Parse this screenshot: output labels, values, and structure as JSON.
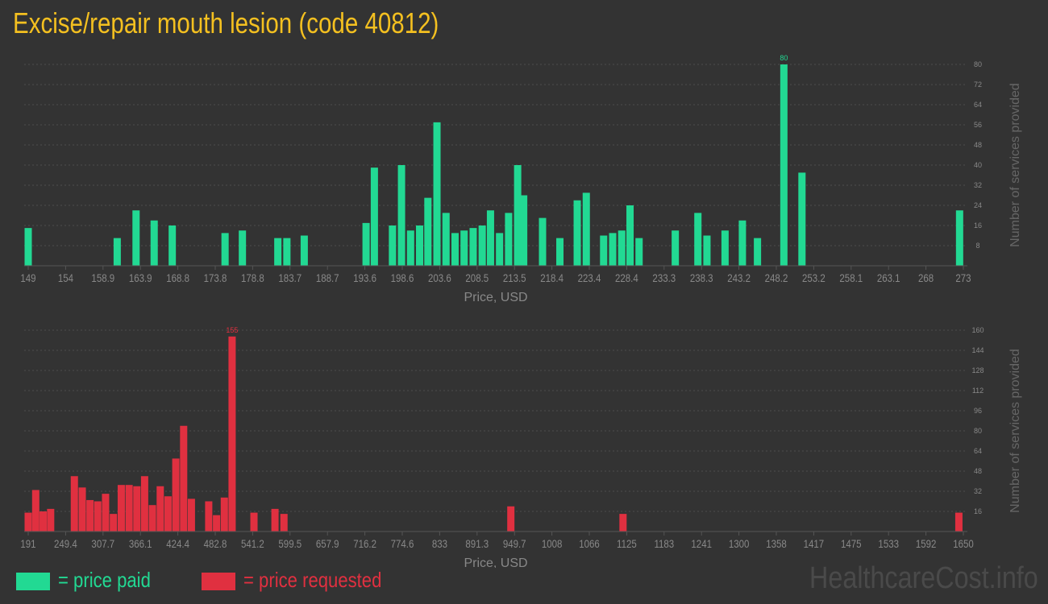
{
  "title": "Excise/repair mouth lesion (code 40812)",
  "watermark": "HealthcareCost.info",
  "legend": {
    "paid_label": "= price paid",
    "requested_label": "= price requested"
  },
  "colors": {
    "background": "#333333",
    "title": "#f4c020",
    "paid": "#22d993",
    "requested": "#e03040",
    "axis_text": "#888888",
    "grid": "#4d4d4d"
  },
  "chart_data": [
    {
      "type": "bar",
      "name": "price paid",
      "xlabel": "Price, USD",
      "ylabel": "Number of services provided",
      "xlim": [
        149,
        273
      ],
      "ylim": [
        0,
        80
      ],
      "yticks": [
        8,
        16,
        24,
        32,
        40,
        48,
        56,
        64,
        72,
        80
      ],
      "xtick_labels": [
        "149",
        "154",
        "158.9",
        "163.9",
        "168.8",
        "173.8",
        "178.8",
        "183.7",
        "188.7",
        "193.6",
        "198.6",
        "203.6",
        "208.5",
        "213.5",
        "218.4",
        "223.4",
        "228.4",
        "233.3",
        "238.3",
        "243.2",
        "248.2",
        "253.2",
        "258.1",
        "263.1",
        "268",
        "273"
      ],
      "x": [
        149,
        160.8,
        163.3,
        165.7,
        168.1,
        175.1,
        177.4,
        182.1,
        183.3,
        185.6,
        193.8,
        194.9,
        197.3,
        198.5,
        199.7,
        200.9,
        202.0,
        203.2,
        204.4,
        205.6,
        206.8,
        208.0,
        209.2,
        210.3,
        211.5,
        212.7,
        213.9,
        214.7,
        217.2,
        219.5,
        221.8,
        223.0,
        225.3,
        226.5,
        227.7,
        228.8,
        230.0,
        234.8,
        237.8,
        239.0,
        241.4,
        243.7,
        245.7,
        249.2,
        251.6,
        272.5
      ],
      "values": [
        15,
        11,
        22,
        18,
        16,
        13,
        14,
        11,
        11,
        12,
        17,
        39,
        16,
        40,
        14,
        16,
        27,
        57,
        21,
        13,
        14,
        15,
        16,
        22,
        13,
        21,
        40,
        28,
        19,
        11,
        26,
        29,
        12,
        13,
        14,
        24,
        11,
        14,
        21,
        12,
        14,
        18,
        11,
        80,
        37,
        22
      ],
      "data_labels": [
        {
          "index": 43,
          "text": "80"
        }
      ]
    },
    {
      "type": "bar",
      "name": "price requested",
      "xlabel": "Price, USD",
      "ylabel": "Number of services provided",
      "xlim": [
        191,
        1650
      ],
      "ylim": [
        0,
        160
      ],
      "yticks": [
        16,
        32,
        48,
        64,
        80,
        96,
        112,
        128,
        144,
        160
      ],
      "xtick_labels": [
        "191",
        "249.4",
        "307.7",
        "366.1",
        "424.4",
        "482.8",
        "541.2",
        "599.5",
        "657.9",
        "716.2",
        "774.6",
        "833",
        "891.3",
        "949.7",
        "1008",
        "1066",
        "1125",
        "1183",
        "1241",
        "1300",
        "1358",
        "1417",
        "1475",
        "1533",
        "1592",
        "1650"
      ],
      "x": [
        191,
        202.7,
        214.3,
        226.0,
        263.0,
        275.3,
        287.4,
        299.5,
        311.7,
        323.9,
        336.2,
        348.4,
        360.5,
        372.6,
        384.8,
        397.0,
        409.1,
        421.3,
        433.5,
        445.6,
        472.6,
        484.8,
        497.0,
        509.1,
        543.2,
        576.0,
        590.0,
        944.0,
        1119.0,
        1643.0
      ],
      "values": [
        15,
        33,
        16,
        18,
        44,
        35,
        25,
        24,
        30,
        14,
        37,
        37,
        36,
        44,
        21,
        36,
        28,
        58,
        84,
        26,
        24,
        13,
        27,
        155,
        15,
        18,
        14,
        20,
        14,
        15
      ],
      "data_labels": [
        {
          "index": 23,
          "text": "155"
        }
      ]
    }
  ]
}
